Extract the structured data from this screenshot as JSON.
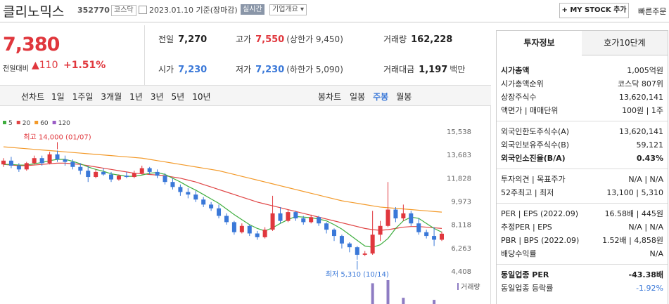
{
  "header": {
    "name": "클리노믹스",
    "code": "352770",
    "market": "코스닥",
    "date": "2023.01.10 기준(장마감)",
    "realtime": "실시간",
    "company": "기업개요 ▾",
    "mystock": "+ MY STOCK 추가",
    "quick": "빠른주문"
  },
  "quote": {
    "price": "7,380",
    "change_label": "전일대비",
    "change": "▲110",
    "rate": "+1.51%"
  },
  "summary": [
    [
      {
        "label": "전일",
        "value": "7,270"
      },
      {
        "label": "고가",
        "value": "7,550",
        "extra": "(상한가 9,450)"
      },
      {
        "label": "거래량",
        "value": "162,228"
      }
    ],
    [
      {
        "label": "시가",
        "value": "7,230"
      },
      {
        "label": "저가",
        "value": "7,230",
        "extra": "(하한가 5,090)"
      },
      {
        "label": "거래대금",
        "value": "1,197",
        "extra": "백만"
      }
    ]
  ],
  "chart_tabs": {
    "line_label": "선차트",
    "periods": [
      "1일",
      "1주일",
      "3개월",
      "1년",
      "3년",
      "5년",
      "10년"
    ],
    "candle_label": "봉차트",
    "candle_periods": [
      "일봉",
      "주봉",
      "월봉"
    ]
  },
  "chart_data": {
    "type": "candlestick",
    "up_color": "#e0373d",
    "down_color": "#3a78d8",
    "legend": [
      {
        "name": "5",
        "color": "#3fae3f"
      },
      {
        "name": "20",
        "color": "#e04545"
      },
      {
        "name": "60",
        "color": "#f39a2a"
      },
      {
        "name": "120",
        "color": "#9a5cc6"
      }
    ],
    "ylim": [
      4408,
      15538
    ],
    "yticks": [
      {
        "value": 4408,
        "label": "4,408"
      },
      {
        "value": 6263,
        "label": "6,263"
      },
      {
        "value": 8118,
        "label": "8,118"
      },
      {
        "value": 9973,
        "label": "9,973"
      },
      {
        "value": 11828,
        "label": "11,828"
      },
      {
        "value": 13683,
        "label": "13,683"
      },
      {
        "value": 15538,
        "label": "15,538"
      }
    ],
    "candles": [
      [
        12900,
        13400,
        12700,
        13200
      ],
      [
        13200,
        13500,
        12600,
        12800
      ],
      [
        12800,
        13000,
        12300,
        12500
      ],
      [
        12500,
        13100,
        12400,
        13000
      ],
      [
        13000,
        13600,
        12900,
        13400
      ],
      [
        13400,
        13600,
        12800,
        13000
      ],
      [
        13000,
        13900,
        12900,
        13700
      ],
      [
        13700,
        14000,
        13100,
        13300
      ],
      [
        13300,
        13600,
        12800,
        13100
      ],
      [
        13100,
        13300,
        12500,
        12700
      ],
      [
        12700,
        13000,
        12100,
        12400
      ],
      [
        12400,
        12800,
        11500,
        11900
      ],
      [
        11900,
        12500,
        11800,
        12300
      ],
      [
        12300,
        12600,
        12000,
        12100
      ],
      [
        12100,
        12300,
        11500,
        11700
      ],
      [
        11700,
        12100,
        11600,
        12000
      ],
      [
        12000,
        12300,
        11800,
        11900
      ],
      [
        11900,
        12400,
        11800,
        12200
      ],
      [
        12200,
        12800,
        12100,
        12600
      ],
      [
        12600,
        12700,
        12100,
        12300
      ],
      [
        12300,
        12500,
        11800,
        12000
      ],
      [
        12000,
        12200,
        11300,
        11500
      ],
      [
        11500,
        11800,
        10900,
        11100
      ],
      [
        11100,
        11300,
        10400,
        10700
      ],
      [
        10700,
        11000,
        10200,
        10500
      ],
      [
        10500,
        10800,
        9900,
        10100
      ],
      [
        10100,
        10300,
        9500,
        9700
      ],
      [
        9700,
        9900,
        9200,
        9400
      ],
      [
        9400,
        9700,
        8600,
        8800
      ],
      [
        8800,
        9000,
        8100,
        8300
      ],
      [
        8300,
        8400,
        7300,
        7500
      ],
      [
        7500,
        8200,
        7400,
        8000
      ],
      [
        8000,
        8100,
        7200,
        7400
      ],
      [
        7400,
        7600,
        6900,
        7100
      ],
      [
        7100,
        7900,
        7000,
        7700
      ],
      [
        7700,
        10400,
        7600,
        9000
      ],
      [
        9000,
        9500,
        8200,
        8400
      ],
      [
        8400,
        9300,
        8300,
        9100
      ],
      [
        9100,
        9200,
        8400,
        8600
      ],
      [
        8600,
        8800,
        8100,
        8300
      ],
      [
        8300,
        8900,
        8200,
        8700
      ],
      [
        8700,
        8800,
        8000,
        8200
      ],
      [
        8200,
        8300,
        7400,
        7700
      ],
      [
        7700,
        7800,
        6800,
        7200
      ],
      [
        7200,
        7300,
        6200,
        6600
      ],
      [
        6600,
        6700,
        5900,
        6300
      ],
      [
        6300,
        6400,
        5310,
        5700
      ],
      [
        5700,
        6000,
        5600,
        5800
      ],
      [
        5800,
        9200,
        5700,
        7300
      ],
      [
        7300,
        8400,
        6800,
        8000
      ],
      [
        8000,
        11500,
        7900,
        9300
      ],
      [
        9300,
        9500,
        8300,
        8600
      ],
      [
        8600,
        9700,
        8400,
        9000
      ],
      [
        9000,
        9200,
        8000,
        8200
      ],
      [
        8200,
        8600,
        7300,
        7500
      ],
      [
        7500,
        7700,
        7000,
        7200
      ],
      [
        7200,
        7900,
        6400,
        6900
      ],
      [
        6900,
        7550,
        6800,
        7380
      ]
    ],
    "ma": [
      {
        "name": "5",
        "values": [
          12900,
          12900,
          12850,
          12850,
          12950,
          13050,
          13200,
          13300,
          13300,
          13150,
          12950,
          12700,
          12500,
          12350,
          12150,
          12050,
          11950,
          11950,
          12050,
          12200,
          12250,
          12100,
          11800,
          11500,
          11150,
          10850,
          10500,
          10150,
          9800,
          9350,
          8900,
          8500,
          8100,
          7800,
          7600,
          7850,
          8200,
          8500,
          8750,
          8700,
          8650,
          8550,
          8400,
          8100,
          7750,
          7300,
          6850,
          6400,
          6300,
          6500,
          7000,
          7800,
          8400,
          8700,
          8600,
          8200,
          7800,
          7500
        ]
      },
      {
        "name": "20",
        "values": [
          12900,
          12850,
          12800,
          12800,
          12850,
          12900,
          12950,
          13000,
          13000,
          12950,
          12900,
          12800,
          12700,
          12600,
          12500,
          12400,
          12300,
          12200,
          12150,
          12100,
          12050,
          12000,
          11900,
          11800,
          11650,
          11500,
          11300,
          11100,
          10900,
          10700,
          10500,
          10300,
          10100,
          9900,
          9750,
          9600,
          9450,
          9300,
          9150,
          9000,
          8850,
          8700,
          8550,
          8400,
          8250,
          8100,
          7950,
          7800,
          7700,
          7650,
          7700,
          7800,
          7900,
          7950,
          7950,
          7900,
          7850,
          7800
        ]
      },
      {
        "name": "60",
        "values": [
          14300,
          14250,
          14200,
          14150,
          14100,
          14050,
          14000,
          13950,
          13900,
          13850,
          13800,
          13750,
          13700,
          13650,
          13600,
          13550,
          13500,
          13450,
          13400,
          13300,
          13200,
          13100,
          13000,
          12900,
          12800,
          12700,
          12600,
          12500,
          12400,
          12250,
          12100,
          11950,
          11800,
          11650,
          11500,
          11350,
          11200,
          11050,
          10900,
          10750,
          10600,
          10450,
          10300,
          10150,
          10000,
          9900,
          9800,
          9700,
          9600,
          9500,
          9450,
          9400,
          9350,
          9300,
          9250,
          9200,
          9150,
          9100
        ]
      }
    ],
    "volume": [
      null,
      null,
      null,
      null,
      null,
      null,
      null,
      null,
      null,
      null,
      null,
      null,
      null,
      null,
      null,
      null,
      null,
      null,
      null,
      null,
      null,
      null,
      null,
      null,
      null,
      null,
      null,
      null,
      null,
      null,
      null,
      null,
      null,
      null,
      null,
      null,
      null,
      null,
      null,
      null,
      null,
      null,
      null,
      null,
      null,
      null,
      null,
      null,
      2000000,
      null,
      2300000,
      null,
      600000,
      null,
      null,
      null,
      400000,
      null
    ],
    "volume_label": "거래량",
    "annotations": [
      {
        "text": "최고 14,000 (01/07)",
        "value": 14000,
        "at": "high"
      },
      {
        "text": "최저 5,310 (10/14)",
        "value": 5310,
        "at": "low"
      }
    ]
  },
  "invest": {
    "tabs": [
      "투자정보",
      "호가10단계"
    ],
    "groups": [
      [
        {
          "label": "시가총액",
          "value": "1,005억원"
        },
        {
          "label": "시가총액순위",
          "value": "코스닥 807위"
        },
        {
          "label": "상장주식수",
          "value": "13,620,141"
        },
        {
          "label": "액면가 | 매매단위",
          "value": "100원 | 1주"
        }
      ],
      [
        {
          "label": "외국인한도주식수(A)",
          "value": "13,620,141"
        },
        {
          "label": "외국인보유주식수(B)",
          "value": "59,121"
        },
        {
          "label": "외국인소진율(B/A)",
          "value": "0.43%"
        }
      ],
      [
        {
          "label": "투자의견 | 목표주가",
          "value": "N/A | N/A"
        },
        {
          "label": "52주최고 | 최저",
          "value": "13,100 | 5,310"
        }
      ],
      [
        {
          "label": "PER | EPS (2022.09)",
          "value": "16.58배 | 445원"
        },
        {
          "label": "추정PER | EPS",
          "value": "N/A | N/A"
        },
        {
          "label": "PBR | BPS (2022.09)",
          "value": "1.52배 | 4,858원"
        },
        {
          "label": "배당수익률",
          "value": "N/A"
        }
      ],
      [
        {
          "label": "동일업종 PER",
          "value": "-43.38배"
        },
        {
          "label": "동일업종 등락률",
          "value": "-1.92%"
        }
      ]
    ]
  }
}
